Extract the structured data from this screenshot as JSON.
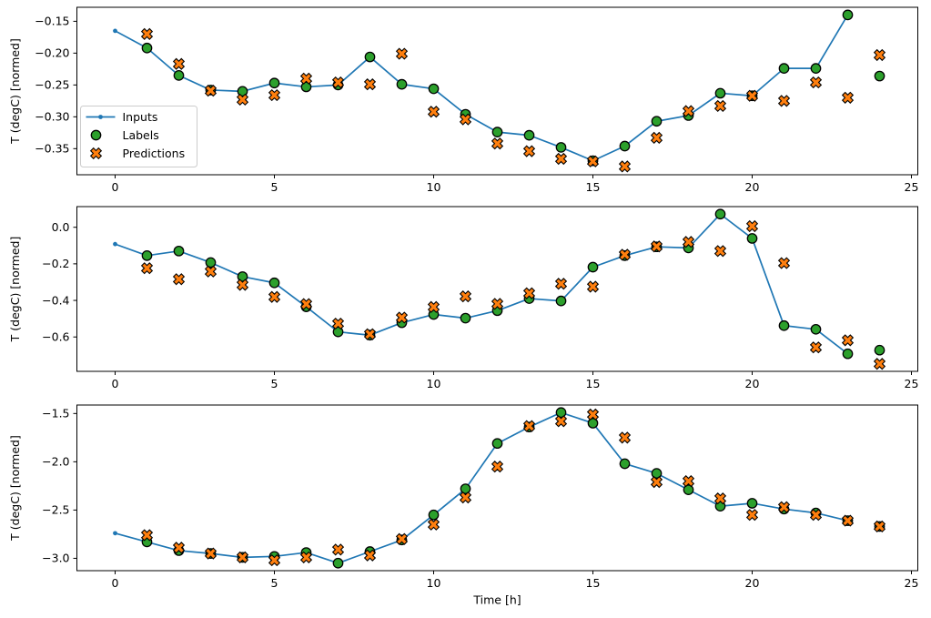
{
  "figure": {
    "background": "#ffffff",
    "text_color": "#000000",
    "xlabel": "Time [h]",
    "ylabel": "T (degC) [normed]",
    "legend": {
      "border_color": "#cccccc",
      "fill": "rgba(255,255,255,0.85)",
      "items": [
        {
          "label": "Inputs",
          "marker": "line-dot",
          "color": "#1f77b4",
          "edge": "#1f77b4"
        },
        {
          "label": "Labels",
          "marker": "circle",
          "color": "#2ca02c",
          "edge": "#000000"
        },
        {
          "label": "Predictions",
          "marker": "x",
          "color": "#ff7f0e",
          "edge": "#000000"
        }
      ]
    }
  },
  "chart_data": [
    {
      "id": "top",
      "type": "line+scatter",
      "title": "",
      "xlabel": "",
      "ylabel": "T (degC) [normed]",
      "xlim": [
        -1.2,
        25.2
      ],
      "ylim": [
        -0.391,
        -0.128
      ],
      "grid": false,
      "legend_visible": true,
      "xticks": {
        "values": [
          0,
          5,
          10,
          15,
          20,
          25
        ],
        "labels": [
          "0",
          "5",
          "10",
          "15",
          "20",
          "25"
        ]
      },
      "yticks": {
        "values": [
          -0.15,
          -0.2,
          -0.25,
          -0.3,
          -0.35
        ],
        "labels": [
          "−0.15",
          "−0.20",
          "−0.25",
          "−0.30",
          "−0.35"
        ]
      },
      "series": [
        {
          "name": "Inputs",
          "type": "line",
          "marker": "line-dot",
          "color": "#1f77b4",
          "x": [
            0,
            1,
            2,
            3,
            4,
            5,
            6,
            7,
            8,
            9,
            10,
            11,
            12,
            13,
            14,
            15,
            16,
            17,
            18,
            19,
            20,
            21,
            22,
            23
          ],
          "y": [
            -0.165,
            -0.192,
            -0.235,
            -0.258,
            -0.26,
            -0.247,
            -0.253,
            -0.25,
            -0.206,
            -0.249,
            -0.256,
            -0.296,
            -0.324,
            -0.329,
            -0.348,
            -0.369,
            -0.346,
            -0.307,
            -0.298,
            -0.263,
            -0.267,
            -0.224,
            -0.224,
            -0.14
          ]
        },
        {
          "name": "Labels",
          "type": "scatter",
          "marker": "circle",
          "color": "#2ca02c",
          "edge": "#000000",
          "x": [
            1,
            2,
            3,
            4,
            5,
            6,
            7,
            8,
            9,
            10,
            11,
            12,
            13,
            14,
            15,
            16,
            17,
            18,
            19,
            20,
            21,
            22,
            23,
            24
          ],
          "y": [
            -0.192,
            -0.235,
            -0.258,
            -0.26,
            -0.247,
            -0.253,
            -0.25,
            -0.206,
            -0.249,
            -0.256,
            -0.296,
            -0.324,
            -0.329,
            -0.348,
            -0.369,
            -0.346,
            -0.307,
            -0.298,
            -0.263,
            -0.267,
            -0.224,
            -0.224,
            -0.14,
            -0.236
          ]
        },
        {
          "name": "Predictions",
          "type": "scatter",
          "marker": "x",
          "color": "#ff7f0e",
          "edge": "#000000",
          "x": [
            1,
            2,
            3,
            4,
            5,
            6,
            7,
            8,
            9,
            10,
            11,
            12,
            13,
            14,
            15,
            16,
            17,
            18,
            19,
            20,
            21,
            22,
            23,
            24
          ],
          "y": [
            -0.17,
            -0.217,
            -0.259,
            -0.273,
            -0.266,
            -0.24,
            -0.246,
            -0.249,
            -0.201,
            -0.292,
            -0.304,
            -0.342,
            -0.354,
            -0.366,
            -0.37,
            -0.378,
            -0.333,
            -0.291,
            -0.283,
            -0.267,
            -0.275,
            -0.246,
            -0.27,
            -0.203
          ]
        }
      ]
    },
    {
      "id": "middle",
      "type": "line+scatter",
      "title": "",
      "xlabel": "",
      "ylabel": "T (degC) [normed]",
      "xlim": [
        -1.2,
        25.2
      ],
      "ylim": [
        -0.788,
        0.113
      ],
      "grid": false,
      "legend_visible": false,
      "xticks": {
        "values": [
          0,
          5,
          10,
          15,
          20,
          25
        ],
        "labels": [
          "0",
          "5",
          "10",
          "15",
          "20",
          "25"
        ]
      },
      "yticks": {
        "values": [
          0.0,
          -0.2,
          -0.4,
          -0.6
        ],
        "labels": [
          "0.0",
          "−0.2",
          "−0.4",
          "−0.6"
        ]
      },
      "series": [
        {
          "name": "Inputs",
          "type": "line",
          "marker": "line-dot",
          "color": "#1f77b4",
          "x": [
            0,
            1,
            2,
            3,
            4,
            5,
            6,
            7,
            8,
            9,
            10,
            11,
            12,
            13,
            14,
            15,
            16,
            17,
            18,
            19,
            20,
            21,
            22,
            23
          ],
          "y": [
            -0.092,
            -0.155,
            -0.13,
            -0.193,
            -0.27,
            -0.304,
            -0.435,
            -0.572,
            -0.59,
            -0.522,
            -0.477,
            -0.497,
            -0.456,
            -0.39,
            -0.403,
            -0.218,
            -0.155,
            -0.107,
            -0.113,
            0.072,
            -0.061,
            -0.538,
            -0.558,
            -0.692
          ]
        },
        {
          "name": "Labels",
          "type": "scatter",
          "marker": "circle",
          "color": "#2ca02c",
          "edge": "#000000",
          "x": [
            1,
            2,
            3,
            4,
            5,
            6,
            7,
            8,
            9,
            10,
            11,
            12,
            13,
            14,
            15,
            16,
            17,
            18,
            19,
            20,
            21,
            22,
            23,
            24
          ],
          "y": [
            -0.155,
            -0.13,
            -0.193,
            -0.27,
            -0.304,
            -0.435,
            -0.572,
            -0.59,
            -0.522,
            -0.477,
            -0.497,
            -0.456,
            -0.39,
            -0.403,
            -0.218,
            -0.155,
            -0.107,
            -0.113,
            0.072,
            -0.061,
            -0.538,
            -0.558,
            -0.692,
            -0.672
          ]
        },
        {
          "name": "Predictions",
          "type": "scatter",
          "marker": "x",
          "color": "#ff7f0e",
          "edge": "#000000",
          "x": [
            1,
            2,
            3,
            4,
            5,
            6,
            7,
            8,
            9,
            10,
            11,
            12,
            13,
            14,
            15,
            16,
            17,
            18,
            19,
            20,
            21,
            22,
            23,
            24
          ],
          "y": [
            -0.224,
            -0.284,
            -0.242,
            -0.315,
            -0.381,
            -0.42,
            -0.527,
            -0.585,
            -0.494,
            -0.436,
            -0.378,
            -0.419,
            -0.361,
            -0.309,
            -0.325,
            -0.15,
            -0.105,
            -0.08,
            -0.13,
            0.006,
            -0.196,
            -0.657,
            -0.618,
            -0.747
          ]
        }
      ]
    },
    {
      "id": "bottom",
      "type": "line+scatter",
      "title": "",
      "xlabel": "Time [h]",
      "ylabel": "T (degC) [normed]",
      "xlim": [
        -1.2,
        25.2
      ],
      "ylim": [
        -3.128,
        -1.412
      ],
      "grid": false,
      "legend_visible": false,
      "xticks": {
        "values": [
          0,
          5,
          10,
          15,
          20,
          25
        ],
        "labels": [
          "0",
          "5",
          "10",
          "15",
          "20",
          "25"
        ]
      },
      "yticks": {
        "values": [
          -1.5,
          -2.0,
          -2.5,
          -3.0
        ],
        "labels": [
          "−1.5",
          "−2.0",
          "−2.5",
          "−3.0"
        ]
      },
      "series": [
        {
          "name": "Inputs",
          "type": "line",
          "marker": "line-dot",
          "color": "#1f77b4",
          "x": [
            0,
            1,
            2,
            3,
            4,
            5,
            6,
            7,
            8,
            9,
            10,
            11,
            12,
            13,
            14,
            15,
            16,
            17,
            18,
            19,
            20,
            21,
            22,
            23
          ],
          "y": [
            -2.74,
            -2.83,
            -2.92,
            -2.95,
            -2.99,
            -2.98,
            -2.94,
            -3.05,
            -2.93,
            -2.81,
            -2.55,
            -2.28,
            -1.81,
            -1.64,
            -1.49,
            -1.6,
            -2.02,
            -2.12,
            -2.29,
            -2.46,
            -2.43,
            -2.49,
            -2.53,
            -2.61
          ]
        },
        {
          "name": "Labels",
          "type": "scatter",
          "marker": "circle",
          "color": "#2ca02c",
          "edge": "#000000",
          "x": [
            1,
            2,
            3,
            4,
            5,
            6,
            7,
            8,
            9,
            10,
            11,
            12,
            13,
            14,
            15,
            16,
            17,
            18,
            19,
            20,
            21,
            22,
            23,
            24
          ],
          "y": [
            -2.83,
            -2.92,
            -2.95,
            -2.99,
            -2.98,
            -2.94,
            -3.05,
            -2.93,
            -2.81,
            -2.55,
            -2.28,
            -1.81,
            -1.64,
            -1.49,
            -1.6,
            -2.02,
            -2.12,
            -2.29,
            -2.46,
            -2.43,
            -2.49,
            -2.53,
            -2.61,
            -2.67
          ]
        },
        {
          "name": "Predictions",
          "type": "scatter",
          "marker": "x",
          "color": "#ff7f0e",
          "edge": "#000000",
          "x": [
            1,
            2,
            3,
            4,
            5,
            6,
            7,
            8,
            9,
            10,
            11,
            12,
            13,
            14,
            15,
            16,
            17,
            18,
            19,
            20,
            21,
            22,
            23,
            24
          ],
          "y": [
            -2.76,
            -2.89,
            -2.95,
            -2.99,
            -3.02,
            -2.99,
            -2.91,
            -2.97,
            -2.8,
            -2.65,
            -2.37,
            -2.05,
            -1.63,
            -1.58,
            -1.51,
            -1.75,
            -2.21,
            -2.2,
            -2.38,
            -2.55,
            -2.47,
            -2.55,
            -2.61,
            -2.67
          ]
        }
      ]
    }
  ]
}
